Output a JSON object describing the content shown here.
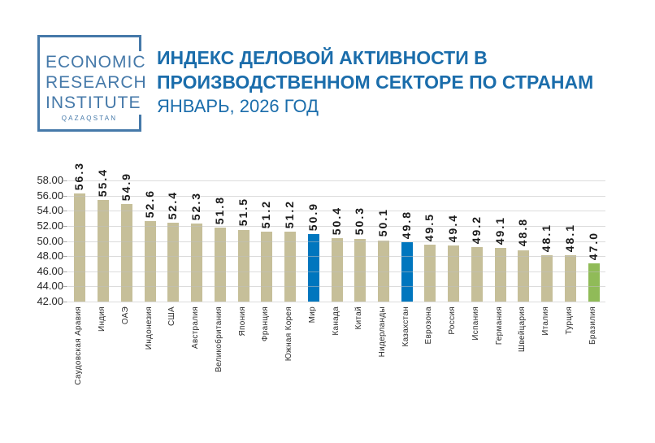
{
  "logo": {
    "lines": [
      "ECONOMIC",
      "RESEARCH",
      "INSTITUTE"
    ],
    "country": "QAZAQSTAN",
    "color": "#4579A9"
  },
  "header": {
    "title_line1": "ИНДЕКС ДЕЛОВОЙ АКТИВНОСТИ В",
    "title_line2": "ПРОИЗВОДСТВЕННОМ СЕКТОРЕ ПО СТРАНАМ",
    "subtitle": "ЯНВАРЬ, 2026 ГОД",
    "accent_color": "#1B6DAB"
  },
  "chart_data": {
    "type": "bar",
    "title": "Индекс деловой активности в производственном секторе по странам",
    "subtitle": "Январь, 2026 год",
    "categories": [
      "Саудовская Аравия",
      "Индия",
      "ОАЭ",
      "Индонезия",
      "США",
      "Австралия",
      "Великобритания",
      "Япония",
      "Франция",
      "Южная Корея",
      "Мир",
      "Канада",
      "Китай",
      "Нидерланды",
      "Казахстан",
      "Еврозона",
      "Россия",
      "Испания",
      "Германия",
      "Швейцария",
      "Италия",
      "Турция",
      "Бразилия"
    ],
    "values": [
      56.3,
      55.4,
      54.9,
      52.6,
      52.4,
      52.3,
      51.8,
      51.5,
      51.2,
      51.2,
      50.9,
      50.4,
      50.3,
      50.1,
      49.8,
      49.5,
      49.4,
      49.2,
      49.1,
      48.8,
      48.1,
      48.1,
      47.0
    ],
    "value_label_decimals": 1,
    "y_ticks": [
      "58.00",
      "56.00",
      "54.00",
      "52.00",
      "50.00",
      "48.00",
      "46.00",
      "44.00",
      "42.00"
    ],
    "ylim": [
      42,
      58
    ],
    "grid": true,
    "legend_position": "none",
    "xlabel": "",
    "ylabel": "",
    "colors": {
      "default": "#C6BF99",
      "highlight": "#0076BE",
      "lowest": "#90BB58"
    },
    "highlighted_bars": [
      {
        "index": 10,
        "label": "Мир",
        "color": "#0076BE"
      },
      {
        "index": 14,
        "label": "Казахстан",
        "color": "#0076BE"
      },
      {
        "index": 22,
        "label": "Бразилия",
        "color": "#90BB58"
      }
    ]
  }
}
